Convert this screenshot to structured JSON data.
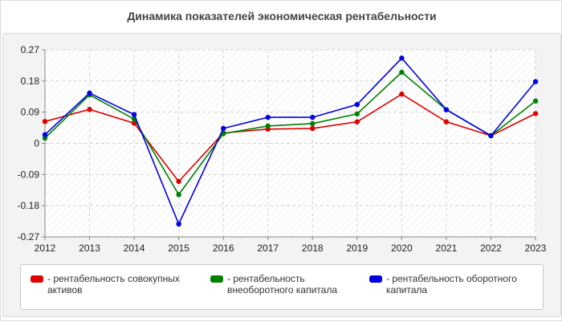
{
  "chart_data": {
    "type": "line",
    "title": "Динамика показателей экономическая рентабельности",
    "x": [
      "2012",
      "2013",
      "2014",
      "2015",
      "2016",
      "2017",
      "2018",
      "2019",
      "2020",
      "2021",
      "2022",
      "2023"
    ],
    "y_ticks": [
      "0.27",
      "0.18",
      "0.09",
      "0",
      "-0.09",
      "-0.18",
      "-0.27"
    ],
    "ylim": [
      -0.27,
      0.27
    ],
    "grid": true,
    "legend_position": "bottom",
    "series": [
      {
        "name": "- рентабельность совокупных активов",
        "color": "#e00000",
        "values": [
          0.063,
          0.098,
          0.058,
          -0.11,
          0.03,
          0.041,
          0.043,
          0.062,
          0.142,
          0.062,
          0.022,
          0.086
        ]
      },
      {
        "name": "- рентабельность внеоборотного капитала",
        "color": "#008000",
        "values": [
          0.015,
          0.14,
          0.07,
          -0.148,
          0.028,
          0.05,
          0.057,
          0.085,
          0.205,
          0.097,
          0.022,
          0.122
        ]
      },
      {
        "name": "- рентабельность оборотного капитала",
        "color": "#0000e0",
        "values": [
          0.025,
          0.145,
          0.083,
          -0.233,
          0.043,
          0.075,
          0.075,
          0.112,
          0.246,
          0.097,
          0.022,
          0.178
        ]
      }
    ]
  }
}
